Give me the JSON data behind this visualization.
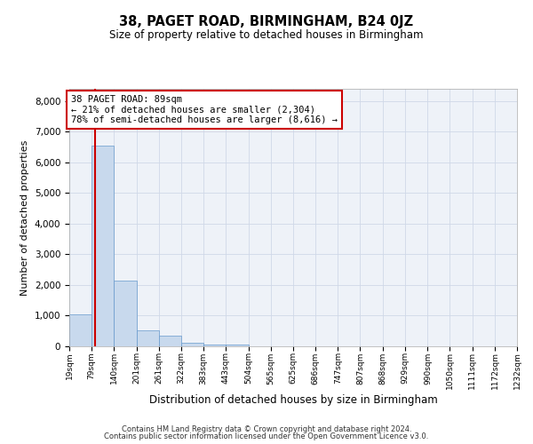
{
  "title": "38, PAGET ROAD, BIRMINGHAM, B24 0JZ",
  "subtitle": "Size of property relative to detached houses in Birmingham",
  "xlabel": "Distribution of detached houses by size in Birmingham",
  "ylabel": "Number of detached properties",
  "property_label": "38 PAGET ROAD: 89sqm",
  "annotation_line1": "← 21% of detached houses are smaller (2,304)",
  "annotation_line2": "78% of semi-detached houses are larger (8,616) →",
  "property_size": 89,
  "footnote1": "Contains HM Land Registry data © Crown copyright and database right 2024.",
  "footnote2": "Contains public sector information licensed under the Open Government Licence v3.0.",
  "bar_color": "#c8d9ed",
  "bar_edge_color": "#6699cc",
  "property_line_color": "#cc0000",
  "annotation_box_color": "#cc0000",
  "grid_color": "#d0d8e8",
  "background_color": "#eef2f8",
  "bins": [
    19,
    79,
    140,
    201,
    261,
    322,
    383,
    443,
    504,
    565,
    625,
    686,
    747,
    807,
    868,
    929,
    990,
    1050,
    1111,
    1172,
    1232
  ],
  "bin_labels": [
    "19sqm",
    "79sqm",
    "140sqm",
    "201sqm",
    "261sqm",
    "322sqm",
    "383sqm",
    "443sqm",
    "504sqm",
    "565sqm",
    "625sqm",
    "686sqm",
    "747sqm",
    "807sqm",
    "868sqm",
    "929sqm",
    "990sqm",
    "1050sqm",
    "1111sqm",
    "1172sqm",
    "1232sqm"
  ],
  "bar_heights": [
    1050,
    6550,
    2150,
    530,
    350,
    120,
    50,
    60,
    0,
    0,
    0,
    0,
    0,
    0,
    0,
    0,
    0,
    0,
    0,
    0
  ],
  "ylim": [
    0,
    8400
  ],
  "yticks": [
    0,
    1000,
    2000,
    3000,
    4000,
    5000,
    6000,
    7000,
    8000
  ]
}
